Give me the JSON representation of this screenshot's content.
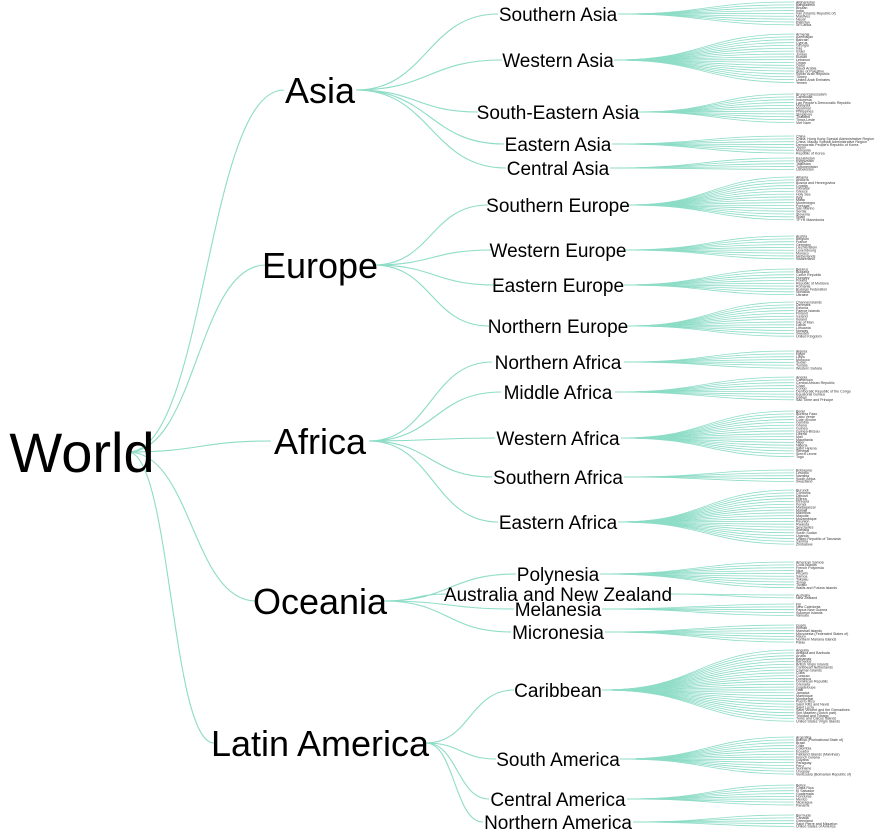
{
  "root": "World",
  "link_color": "#8ddcc6",
  "tree": [
    {
      "name": "Asia",
      "regions": [
        {
          "name": "Southern Asia",
          "leaves": [
            "Afghanistan",
            "Bangladesh",
            "Bhutan",
            "India",
            "Iran (Islamic Republic of)",
            "Maldives",
            "Nepal",
            "Pakistan",
            "Sri Lanka"
          ]
        },
        {
          "name": "Western Asia",
          "leaves": [
            "Armenia",
            "Azerbaijan",
            "Bahrain",
            "Cyprus",
            "Georgia",
            "Iraq",
            "Israel",
            "Jordan",
            "Kuwait",
            "Lebanon",
            "Oman",
            "Qatar",
            "Saudi Arabia",
            "State of Palestine",
            "Syrian Arab Republic",
            "Turkey",
            "United Arab Emirates",
            "Yemen"
          ]
        },
        {
          "name": "South-Eastern Asia",
          "leaves": [
            "Brunei Darussalam",
            "Cambodia",
            "Indonesia",
            "Lao People's Democratic Republic",
            "Malaysia",
            "Myanmar",
            "Philippines",
            "Singapore",
            "Thailand",
            "Timor-Leste",
            "Viet Nam"
          ]
        },
        {
          "name": "Eastern Asia",
          "leaves": [
            "China",
            "China, Hong Kong Special Administrative Region",
            "China, Macao Special Administrative Region",
            "Democratic People's Republic of Korea",
            "Japan",
            "Mongolia",
            "Republic of Korea"
          ]
        },
        {
          "name": "Central Asia",
          "leaves": [
            "Kazakhstan",
            "Kyrgyzstan",
            "Tajikistan",
            "Turkmenistan",
            "Uzbekistan"
          ]
        }
      ]
    },
    {
      "name": "Europe",
      "regions": [
        {
          "name": "Southern Europe",
          "leaves": [
            "Albania",
            "Andorra",
            "Bosnia and Herzegovina",
            "Croatia",
            "Gibraltar",
            "Greece",
            "Holy See",
            "Italy",
            "Malta",
            "Montenegro",
            "Portugal",
            "San Marino",
            "Serbia",
            "Slovenia",
            "Spain",
            "TFYR Macedonia"
          ]
        },
        {
          "name": "Western Europe",
          "leaves": [
            "Austria",
            "Belgium",
            "France",
            "Germany",
            "Liechtenstein",
            "Luxembourg",
            "Monaco",
            "Netherlands",
            "Switzerland"
          ]
        },
        {
          "name": "Eastern Europe",
          "leaves": [
            "Belarus",
            "Bulgaria",
            "Czech Republic",
            "Hungary",
            "Poland",
            "Republic of Moldova",
            "Romania",
            "Russian Federation",
            "Slovakia",
            "Ukraine"
          ]
        },
        {
          "name": "Northern Europe",
          "leaves": [
            "Channel Islands",
            "Denmark",
            "Estonia",
            "Faeroe Islands",
            "Finland",
            "Iceland",
            "Ireland",
            "Isle of Man",
            "Latvia",
            "Lithuania",
            "Norway",
            "Sweden",
            "United Kingdom"
          ]
        }
      ]
    },
    {
      "name": "Africa",
      "regions": [
        {
          "name": "Northern Africa",
          "leaves": [
            "Algeria",
            "Egypt",
            "Libya",
            "Morocco",
            "Sudan",
            "Tunisia",
            "Western Sahara"
          ]
        },
        {
          "name": "Middle Africa",
          "leaves": [
            "Angola",
            "Cameroon",
            "Central African Republic",
            "Chad",
            "Congo",
            "Democratic Republic of the Congo",
            "Equatorial Guinea",
            "Gabon",
            "Sao Tome and Principe"
          ]
        },
        {
          "name": "Western Africa",
          "leaves": [
            "Benin",
            "Burkina Faso",
            "Cabo Verde",
            "Cote d'Ivoire",
            "Gambia",
            "Ghana",
            "Guinea",
            "Guinea-Bissau",
            "Liberia",
            "Mali",
            "Mauritania",
            "Niger",
            "Nigeria",
            "Saint Helena",
            "Senegal",
            "Sierra Leone",
            "Togo"
          ]
        },
        {
          "name": "Southern Africa",
          "leaves": [
            "Botswana",
            "Lesotho",
            "Namibia",
            "South Africa",
            "Swaziland"
          ]
        },
        {
          "name": "Eastern Africa",
          "leaves": [
            "Burundi",
            "Comoros",
            "Djibouti",
            "Eritrea",
            "Ethiopia",
            "Kenya",
            "Madagascar",
            "Malawi",
            "Mauritius",
            "Mayotte",
            "Mozambique",
            "Reunion",
            "Rwanda",
            "Seychelles",
            "Somalia",
            "South Sudan",
            "Uganda",
            "United Republic of Tanzania",
            "Zambia",
            "Zimbabwe"
          ]
        }
      ]
    },
    {
      "name": "Oceania",
      "regions": [
        {
          "name": "Polynesia",
          "leaves": [
            "American Samoa",
            "Cook Islands",
            "French Polynesia",
            "Niue",
            "Pitcairn",
            "Samoa",
            "Tokelau",
            "Tonga",
            "Tuvalu",
            "Wallis and Futuna Islands"
          ]
        },
        {
          "name": "Australia and New Zealand",
          "leaves": [
            "Australia",
            "New Zealand"
          ]
        },
        {
          "name": "Melanesia",
          "leaves": [
            "Fiji",
            "New Caledonia",
            "Papua New Guinea",
            "Solomon Islands",
            "Vanuatu"
          ]
        },
        {
          "name": "Micronesia",
          "leaves": [
            "Guam",
            "Kiribati",
            "Marshall Islands",
            "Micronesia (Federated States of)",
            "Nauru",
            "Northern Mariana Islands",
            "Palau"
          ]
        }
      ]
    },
    {
      "name": "Latin America",
      "regions": [
        {
          "name": "Caribbean",
          "leaves": [
            "Anguilla",
            "Antigua and Barbuda",
            "Aruba",
            "Bahamas",
            "Barbados",
            "British Virgin Islands",
            "Caribbean Netherlands",
            "Cayman Islands",
            "Cuba",
            "Curacao",
            "Dominica",
            "Dominican Republic",
            "Grenada",
            "Guadeloupe",
            "Haiti",
            "Jamaica",
            "Martinique",
            "Montserrat",
            "Puerto Rico",
            "Saint Kitts and Nevis",
            "Saint Lucia",
            "Saint Vincent and the Grenadines",
            "Sint Maarten (Dutch part)",
            "Trinidad and Tobago",
            "Turks and Caicos Islands",
            "United States Virgin Islands"
          ]
        },
        {
          "name": "South America",
          "leaves": [
            "Argentina",
            "Bolivia (Plurinational State of)",
            "Brazil",
            "Chile",
            "Colombia",
            "Ecuador",
            "Falkland Islands (Malvinas)",
            "French Guiana",
            "Guyana",
            "Paraguay",
            "Peru",
            "Suriname",
            "Uruguay",
            "Venezuela (Bolivarian Republic of)"
          ]
        },
        {
          "name": "Central America",
          "leaves": [
            "Belize",
            "Costa Rica",
            "El Salvador",
            "Guatemala",
            "Honduras",
            "Mexico",
            "Nicaragua",
            "Panama"
          ]
        },
        {
          "name": "Northern America",
          "leaves": [
            "Bermuda",
            "Canada",
            "Greenland",
            "Saint Pierre and Miquelon",
            "United States of America"
          ]
        }
      ]
    }
  ]
}
